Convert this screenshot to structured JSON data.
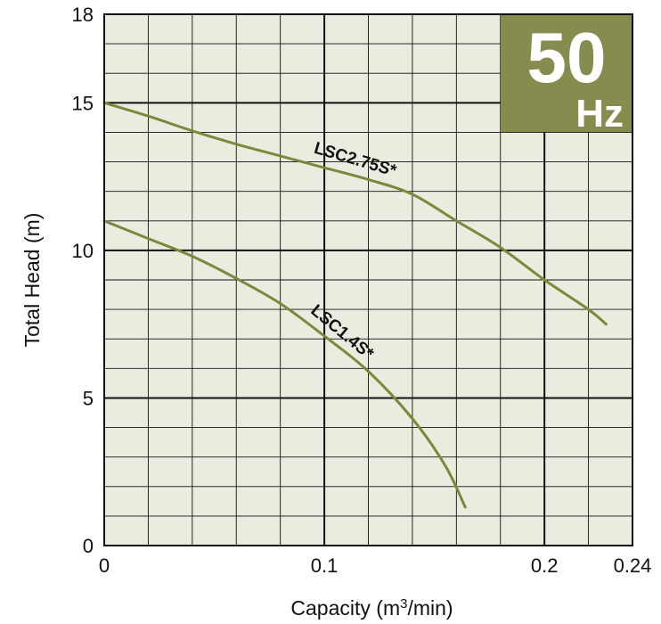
{
  "chart_data": {
    "type": "line",
    "xlabel": "Capacity (m",
    "xlabel_sup": "3",
    "xlabel_tail": "/min)",
    "ylabel": "Total Head (m)",
    "xlim": [
      0,
      0.24
    ],
    "ylim": [
      0,
      18
    ],
    "x_ticks": [
      0,
      0.1,
      0.2,
      0.24
    ],
    "x_tick_labels": [
      "0",
      "0.1",
      "0.2",
      "0.24"
    ],
    "y_ticks": [
      0,
      5,
      10,
      15,
      18
    ],
    "y_tick_labels": [
      "0",
      "5",
      "10",
      "15",
      "18"
    ],
    "grid": true,
    "grid_minor_x_step": 0.02,
    "grid_minor_y_step": 1,
    "grid_major_x": [
      0.1,
      0.2
    ],
    "grid_major_y": [
      5,
      10,
      15
    ],
    "badge": {
      "number": "50",
      "unit": "Hz",
      "placement": "top-right"
    },
    "series": [
      {
        "name": "LSC2.75S*",
        "x": [
          0,
          0.02,
          0.04,
          0.06,
          0.08,
          0.1,
          0.12,
          0.14,
          0.16,
          0.18,
          0.2,
          0.22,
          0.228
        ],
        "y": [
          15.0,
          14.55,
          14.05,
          13.6,
          13.2,
          12.8,
          12.4,
          11.9,
          11.0,
          10.1,
          9.0,
          8.0,
          7.5
        ]
      },
      {
        "name": "LSC1.4S*",
        "x": [
          0,
          0.02,
          0.04,
          0.06,
          0.08,
          0.1,
          0.12,
          0.14,
          0.155,
          0.164
        ],
        "y": [
          11.0,
          10.4,
          9.8,
          9.05,
          8.2,
          7.1,
          5.9,
          4.3,
          2.7,
          1.3
        ]
      }
    ],
    "colors": {
      "plot_background": "#ecebe0",
      "curve": "#7a8a3a",
      "badge_background": "#868c4e",
      "grid": "#111111"
    }
  }
}
